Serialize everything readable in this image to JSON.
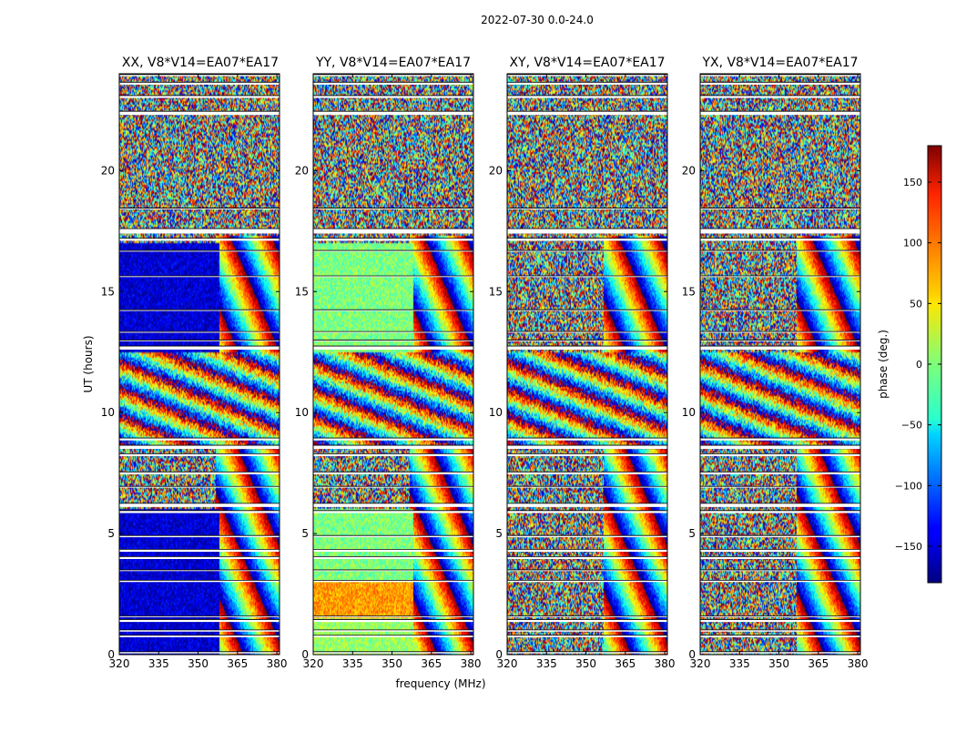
{
  "figure_title": "2022-07-30 0.0-24.0",
  "colormap": "jet",
  "chart_data": [
    {
      "type": "heatmap",
      "title": "XX, V8*V14=EA07*EA17",
      "xlabel": "",
      "ylabel": "UT (hours)",
      "xlim": [
        320,
        381
      ],
      "ylim": [
        0,
        24
      ],
      "x_ticks": [
        320,
        335,
        350,
        365,
        380
      ],
      "y_ticks": [
        0,
        5,
        10,
        15,
        20
      ],
      "x_tick_labels": [
        "320",
        "335",
        "350",
        "365",
        "380"
      ],
      "y_tick_labels": [
        "0",
        "5",
        "10",
        "15",
        "20"
      ],
      "value": "phase (deg.)"
    },
    {
      "type": "heatmap",
      "title": "YY, V8*V14=EA07*EA17",
      "xlabel": "frequency (MHz)",
      "ylabel": "",
      "xlim": [
        320,
        381
      ],
      "ylim": [
        0,
        24
      ],
      "x_ticks": [
        320,
        335,
        350,
        365,
        380
      ],
      "y_ticks": [
        0,
        5,
        10,
        15,
        20
      ],
      "x_tick_labels": [
        "320",
        "335",
        "350",
        "365",
        "380"
      ],
      "y_tick_labels": [
        "0",
        "5",
        "10",
        "15",
        "20"
      ],
      "value": "phase (deg.)"
    },
    {
      "type": "heatmap",
      "title": "XY, V8*V14=EA07*EA17",
      "xlabel": "",
      "ylabel": "",
      "xlim": [
        320,
        381
      ],
      "ylim": [
        0,
        24
      ],
      "x_ticks": [
        320,
        335,
        350,
        365,
        380
      ],
      "y_ticks": [
        0,
        5,
        10,
        15,
        20
      ],
      "x_tick_labels": [
        "320",
        "335",
        "350",
        "365",
        "380"
      ],
      "y_tick_labels": [
        "0",
        "5",
        "10",
        "15",
        "20"
      ],
      "value": "phase (deg.)"
    },
    {
      "type": "heatmap",
      "title": "YX, V8*V14=EA07*EA17",
      "xlabel": "",
      "ylabel": "",
      "xlim": [
        320,
        381
      ],
      "ylim": [
        0,
        24
      ],
      "x_ticks": [
        320,
        335,
        350,
        365,
        380
      ],
      "y_ticks": [
        0,
        5,
        10,
        15,
        20
      ],
      "x_tick_labels": [
        "320",
        "335",
        "350",
        "365",
        "380"
      ],
      "y_tick_labels": [
        "0",
        "5",
        "10",
        "15",
        "20"
      ],
      "value": "phase (deg.)"
    }
  ],
  "colorbar": {
    "label": "phase (deg.)",
    "range": [
      -180,
      180
    ],
    "ticks": [
      -150,
      -100,
      -50,
      0,
      50,
      100,
      150
    ],
    "tick_labels": [
      "−150",
      "−100",
      "−50",
      "0",
      "50",
      "100",
      "150"
    ]
  },
  "gaps_hours": [
    [
      0.05,
      0.12
    ],
    [
      0.72,
      0.8
    ],
    [
      0.95,
      1.02
    ],
    [
      1.35,
      1.45
    ],
    [
      1.55,
      1.6
    ],
    [
      3.0,
      3.07
    ],
    [
      3.45,
      3.5
    ],
    [
      3.95,
      4.05
    ],
    [
      4.25,
      4.35
    ],
    [
      4.85,
      4.92
    ],
    [
      5.85,
      5.95
    ],
    [
      6.1,
      6.25
    ],
    [
      6.9,
      6.95
    ],
    [
      7.45,
      7.55
    ],
    [
      8.2,
      8.3
    ],
    [
      8.5,
      8.65
    ],
    [
      8.85,
      8.95
    ],
    [
      12.6,
      12.75
    ],
    [
      12.95,
      13.0
    ],
    [
      13.3,
      13.35
    ],
    [
      14.2,
      14.25
    ],
    [
      15.6,
      15.65
    ],
    [
      16.65,
      16.7
    ],
    [
      17.1,
      17.2
    ],
    [
      17.4,
      17.6
    ],
    [
      18.4,
      18.45
    ],
    [
      22.3,
      22.45
    ],
    [
      23.0,
      23.1
    ],
    [
      23.55,
      23.65
    ],
    [
      23.9,
      23.97
    ]
  ]
}
